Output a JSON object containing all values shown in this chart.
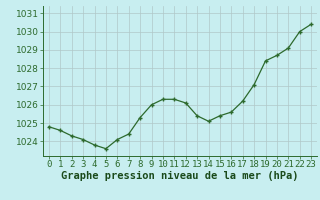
{
  "x": [
    0,
    1,
    2,
    3,
    4,
    5,
    6,
    7,
    8,
    9,
    10,
    11,
    12,
    13,
    14,
    15,
    16,
    17,
    18,
    19,
    20,
    21,
    22,
    23
  ],
  "y": [
    1024.8,
    1024.6,
    1024.3,
    1024.1,
    1023.8,
    1023.6,
    1024.1,
    1024.4,
    1025.3,
    1026.0,
    1026.3,
    1026.3,
    1026.1,
    1025.4,
    1025.1,
    1025.4,
    1025.6,
    1026.2,
    1027.1,
    1028.4,
    1028.7,
    1029.1,
    1030.0,
    1030.4
  ],
  "line_color": "#2d6a2d",
  "marker_color": "#2d6a2d",
  "bg_color": "#c8eef0",
  "grid_color": "#b0c8c8",
  "xlabel": "Graphe pression niveau de la mer (hPa)",
  "xlabel_color": "#1a4a1a",
  "tick_color": "#2d6a2d",
  "ylim": [
    1023.2,
    1031.4
  ],
  "yticks": [
    1024,
    1025,
    1026,
    1027,
    1028,
    1029,
    1030,
    1031
  ],
  "xlim": [
    -0.5,
    23.5
  ],
  "xticks": [
    0,
    1,
    2,
    3,
    4,
    5,
    6,
    7,
    8,
    9,
    10,
    11,
    12,
    13,
    14,
    15,
    16,
    17,
    18,
    19,
    20,
    21,
    22,
    23
  ],
  "axis_fontsize": 6.5,
  "xlabel_fontsize": 7.5
}
